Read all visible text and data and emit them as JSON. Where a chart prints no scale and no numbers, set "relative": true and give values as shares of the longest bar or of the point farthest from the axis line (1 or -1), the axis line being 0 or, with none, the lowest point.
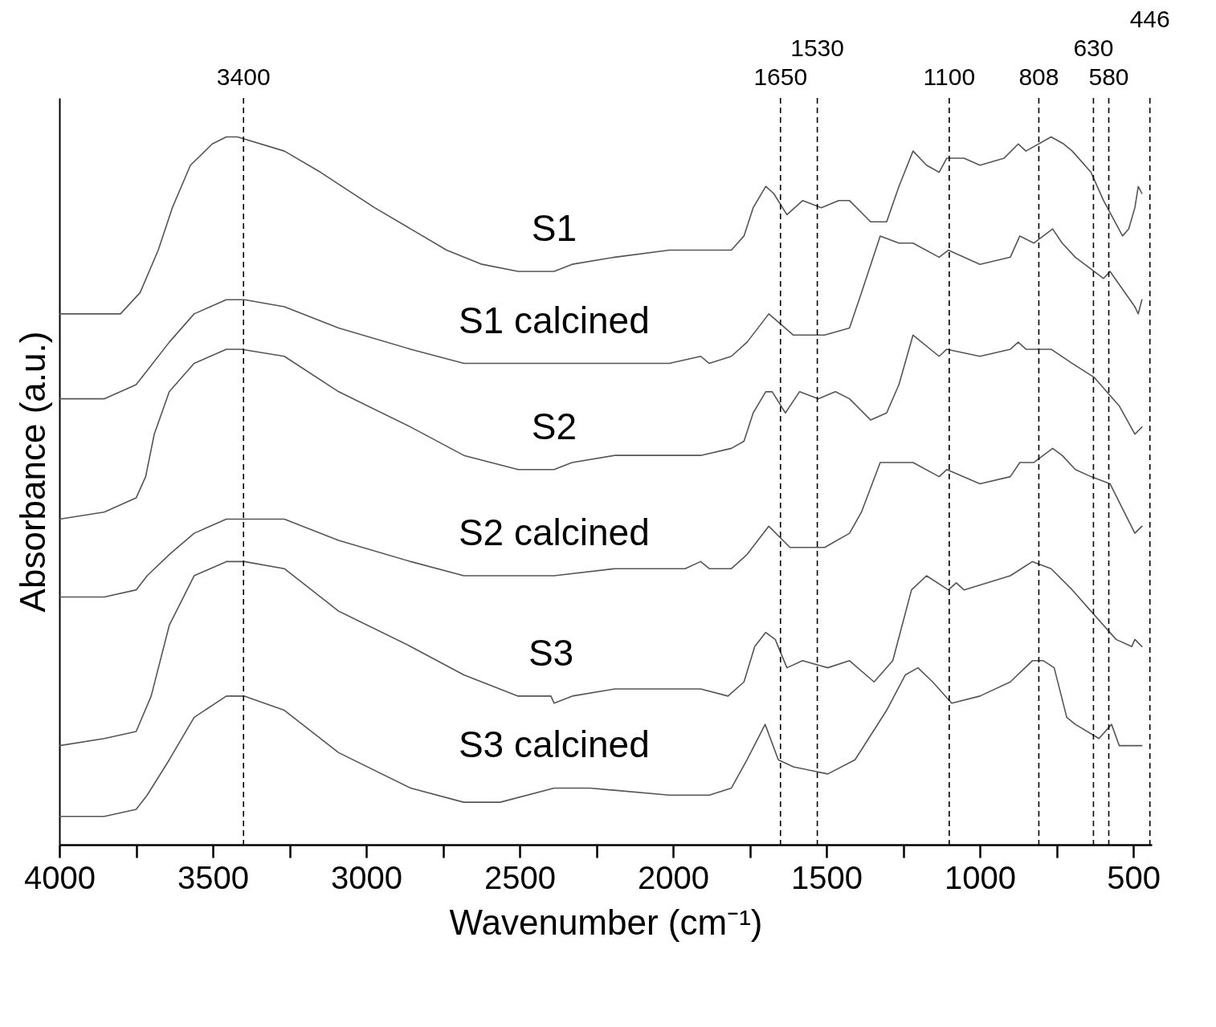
{
  "chart_data": {
    "type": "line",
    "relative": true,
    "xlabel": "Wavenumber (cm⁻¹)",
    "ylabel": "Absorbance (a.u.)",
    "xlim": [
      4000,
      440
    ],
    "xticks": [
      4000,
      {
        "value": 3750,
        "label": null
      },
      3500,
      {
        "value": 3250,
        "label": null
      },
      3000,
      {
        "value": 2750,
        "label": null
      },
      2500,
      {
        "value": 2250,
        "label": null
      },
      2000,
      {
        "value": 1750,
        "label": null
      },
      1500,
      {
        "value": 1250,
        "label": null
      },
      1000,
      {
        "value": 750,
        "label": null
      },
      500
    ],
    "marker": "none",
    "line_style": "solid",
    "series": [
      {
        "name": "S1",
        "color": "#555555",
        "x": [
          4000,
          3801,
          3737,
          3678,
          3632,
          3573,
          3502,
          3456,
          3420,
          3267,
          3149,
          2973,
          2855,
          2738,
          2623,
          2505,
          2411,
          2388,
          2329,
          2191,
          2012,
          1910,
          1810,
          1769,
          1739,
          1698,
          1672,
          1629,
          1578,
          1517,
          1460,
          1425,
          1356,
          1304,
          1264,
          1218,
          1174,
          1133,
          1108,
          1052,
          1000,
          921,
          875,
          850,
          768,
          727,
          699,
          638,
          597,
          535,
          515,
          495,
          484,
          472
        ],
        "values": [
          0.75,
          0.75,
          0.78,
          0.84,
          0.9,
          0.96,
          0.99,
          1.0,
          1.0,
          0.98,
          0.95,
          0.9,
          0.87,
          0.84,
          0.82,
          0.81,
          0.81,
          0.81,
          0.82,
          0.83,
          0.84,
          0.84,
          0.84,
          0.86,
          0.9,
          0.93,
          0.92,
          0.89,
          0.91,
          0.9,
          0.91,
          0.91,
          0.88,
          0.88,
          0.93,
          0.98,
          0.96,
          0.95,
          0.97,
          0.97,
          0.96,
          0.97,
          0.99,
          0.98,
          1.0,
          0.99,
          0.98,
          0.95,
          0.91,
          0.86,
          0.87,
          0.9,
          0.93,
          0.92
        ]
      },
      {
        "name": "S1 calcined",
        "color": "#555555",
        "x": [
          4000,
          3854,
          3750,
          3714,
          3642,
          3561,
          3456,
          3397,
          3267,
          3090,
          2855,
          2682,
          2505,
          2388,
          2191,
          2012,
          1910,
          1882,
          1810,
          1759,
          1688,
          1608,
          1506,
          1425,
          1386,
          1325,
          1264,
          1218,
          1133,
          1103,
          1000,
          901,
          870,
          824,
          763,
          732,
          689,
          597,
          576,
          495,
          484,
          472
        ],
        "values": [
          0.63,
          0.63,
          0.65,
          0.67,
          0.71,
          0.75,
          0.77,
          0.77,
          0.76,
          0.73,
          0.7,
          0.68,
          0.68,
          0.68,
          0.68,
          0.68,
          0.69,
          0.68,
          0.69,
          0.71,
          0.75,
          0.72,
          0.72,
          0.73,
          0.78,
          0.86,
          0.85,
          0.85,
          0.83,
          0.84,
          0.82,
          0.83,
          0.86,
          0.85,
          0.87,
          0.85,
          0.83,
          0.8,
          0.81,
          0.76,
          0.75,
          0.77
        ]
      },
      {
        "name": "S2",
        "color": "#555555",
        "x": [
          4000,
          3854,
          3750,
          3719,
          3691,
          3642,
          3561,
          3456,
          3407,
          3267,
          3090,
          2855,
          2682,
          2505,
          2411,
          2388,
          2329,
          2191,
          2012,
          1910,
          1810,
          1769,
          1739,
          1698,
          1677,
          1634,
          1588,
          1527,
          1471,
          1425,
          1356,
          1304,
          1264,
          1218,
          1133,
          1108,
          1000,
          901,
          875,
          850,
          768,
          699,
          627,
          546,
          495,
          472
        ],
        "values": [
          0.46,
          0.47,
          0.49,
          0.52,
          0.58,
          0.64,
          0.68,
          0.7,
          0.7,
          0.69,
          0.64,
          0.59,
          0.55,
          0.53,
          0.53,
          0.53,
          0.54,
          0.55,
          0.55,
          0.55,
          0.56,
          0.57,
          0.61,
          0.64,
          0.64,
          0.61,
          0.64,
          0.63,
          0.64,
          0.63,
          0.6,
          0.61,
          0.65,
          0.72,
          0.69,
          0.7,
          0.69,
          0.7,
          0.71,
          0.7,
          0.7,
          0.68,
          0.66,
          0.62,
          0.58,
          0.59
        ]
      },
      {
        "name": "S2 calcined",
        "color": "#555555",
        "x": [
          4000,
          3854,
          3750,
          3714,
          3642,
          3561,
          3456,
          3397,
          3267,
          3090,
          2855,
          2682,
          2505,
          2388,
          2191,
          1961,
          1910,
          1882,
          1810,
          1759,
          1688,
          1619,
          1506,
          1425,
          1386,
          1325,
          1264,
          1218,
          1133,
          1108,
          1000,
          901,
          870,
          824,
          763,
          732,
          689,
          638,
          576,
          495,
          472
        ],
        "values": [
          0.35,
          0.35,
          0.36,
          0.38,
          0.41,
          0.44,
          0.46,
          0.46,
          0.46,
          0.43,
          0.4,
          0.38,
          0.38,
          0.38,
          0.39,
          0.39,
          0.4,
          0.39,
          0.39,
          0.41,
          0.45,
          0.42,
          0.42,
          0.44,
          0.47,
          0.54,
          0.54,
          0.54,
          0.52,
          0.53,
          0.51,
          0.52,
          0.54,
          0.54,
          0.56,
          0.55,
          0.53,
          0.52,
          0.51,
          0.44,
          0.45
        ]
      },
      {
        "name": "S3",
        "color": "#555555",
        "x": [
          4000,
          3854,
          3750,
          3701,
          3642,
          3561,
          3456,
          3397,
          3267,
          3090,
          2855,
          2682,
          2505,
          2398,
          2388,
          2329,
          2191,
          1910,
          1821,
          1769,
          1734,
          1698,
          1667,
          1629,
          1578,
          1496,
          1425,
          1345,
          1284,
          1223,
          1174,
          1103,
          1077,
          1052,
          901,
          829,
          768,
          699,
          638,
          556,
          505,
          495,
          472
        ],
        "values": [
          0.14,
          0.15,
          0.16,
          0.21,
          0.31,
          0.38,
          0.4,
          0.4,
          0.39,
          0.33,
          0.28,
          0.24,
          0.21,
          0.21,
          0.2,
          0.21,
          0.22,
          0.22,
          0.21,
          0.23,
          0.28,
          0.3,
          0.29,
          0.25,
          0.26,
          0.25,
          0.26,
          0.23,
          0.26,
          0.36,
          0.38,
          0.36,
          0.37,
          0.36,
          0.38,
          0.4,
          0.39,
          0.36,
          0.33,
          0.29,
          0.28,
          0.29,
          0.28
        ]
      },
      {
        "name": "S3 calcined",
        "color": "#555555",
        "x": [
          4000,
          3854,
          3750,
          3714,
          3642,
          3561,
          3456,
          3397,
          3267,
          3090,
          2855,
          2682,
          2564,
          2388,
          2270,
          2012,
          1882,
          1810,
          1759,
          1700,
          1657,
          1608,
          1496,
          1407,
          1304,
          1243,
          1202,
          1154,
          1092,
          1000,
          901,
          829,
          793,
          758,
          717,
          689,
          612,
          571,
          546,
          505,
          472
        ],
        "values": [
          0.04,
          0.04,
          0.05,
          0.07,
          0.12,
          0.18,
          0.21,
          0.21,
          0.19,
          0.13,
          0.08,
          0.06,
          0.06,
          0.08,
          0.08,
          0.07,
          0.07,
          0.08,
          0.12,
          0.17,
          0.12,
          0.11,
          0.1,
          0.12,
          0.19,
          0.24,
          0.25,
          0.23,
          0.2,
          0.21,
          0.23,
          0.26,
          0.26,
          0.25,
          0.18,
          0.17,
          0.15,
          0.17,
          0.14,
          0.14,
          0.14
        ]
      }
    ],
    "ref_lines": [
      {
        "axis": "x",
        "value": 3400,
        "label": "3400",
        "color": "#000000",
        "line_style": "dashed"
      },
      {
        "axis": "x",
        "value": 1650,
        "label": "1650",
        "color": "#000000",
        "line_style": "dashed"
      },
      {
        "axis": "x",
        "value": 1530,
        "label": "1530",
        "color": "#000000",
        "line_style": "dashed"
      },
      {
        "axis": "x",
        "value": 1100,
        "label": "1100",
        "color": "#000000",
        "line_style": "dashed"
      },
      {
        "axis": "x",
        "value": 808,
        "label": "808",
        "color": "#000000",
        "line_style": "dashed"
      },
      {
        "axis": "x",
        "value": 630,
        "label": "630",
        "color": "#000000",
        "line_style": "dashed"
      },
      {
        "axis": "x",
        "value": 580,
        "label": "580",
        "color": "#000000",
        "line_style": "dashed"
      },
      {
        "axis": "x",
        "value": 446,
        "label": "446",
        "color": "#000000",
        "line_style": "dashed"
      }
    ]
  }
}
